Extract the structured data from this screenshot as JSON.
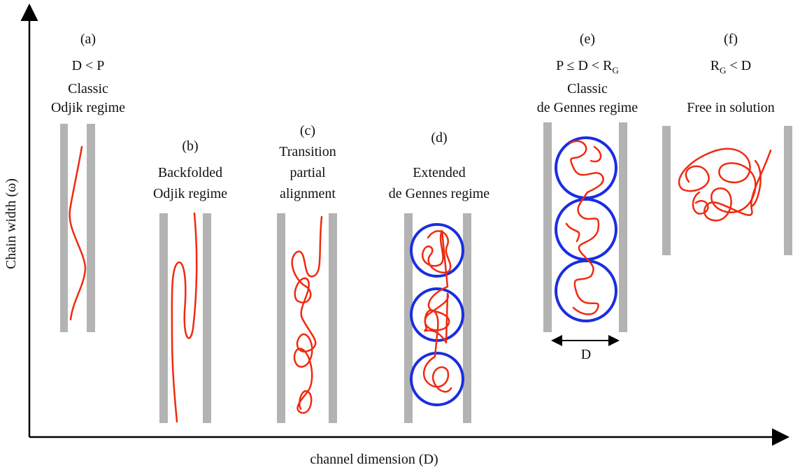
{
  "axes": {
    "y_label": "Chain width (ω)",
    "x_label": "channel dimension (D)"
  },
  "panels": [
    {
      "label": "(a)",
      "condition": "D < P",
      "lines": [
        "Classic",
        "Odjik regime"
      ]
    },
    {
      "label": "(b)",
      "lines": [
        "Backfolded",
        "Odjik regime"
      ]
    },
    {
      "label": "(c)",
      "lines": [
        "Transition",
        "partial",
        "alignment"
      ]
    },
    {
      "label": "(d)",
      "lines": [
        "Extended",
        "de Gennes regime"
      ]
    },
    {
      "label": "(e)",
      "condition": {
        "main": "P ≤  D < R",
        "sub": "G"
      },
      "lines": [
        "Classic",
        "de Gennes regime"
      ],
      "width_label": "D"
    },
    {
      "label": "(f)",
      "condition": {
        "pre": "R",
        "sub": "G",
        "post": " < D"
      },
      "lines": [
        "Free in solution"
      ]
    }
  ]
}
